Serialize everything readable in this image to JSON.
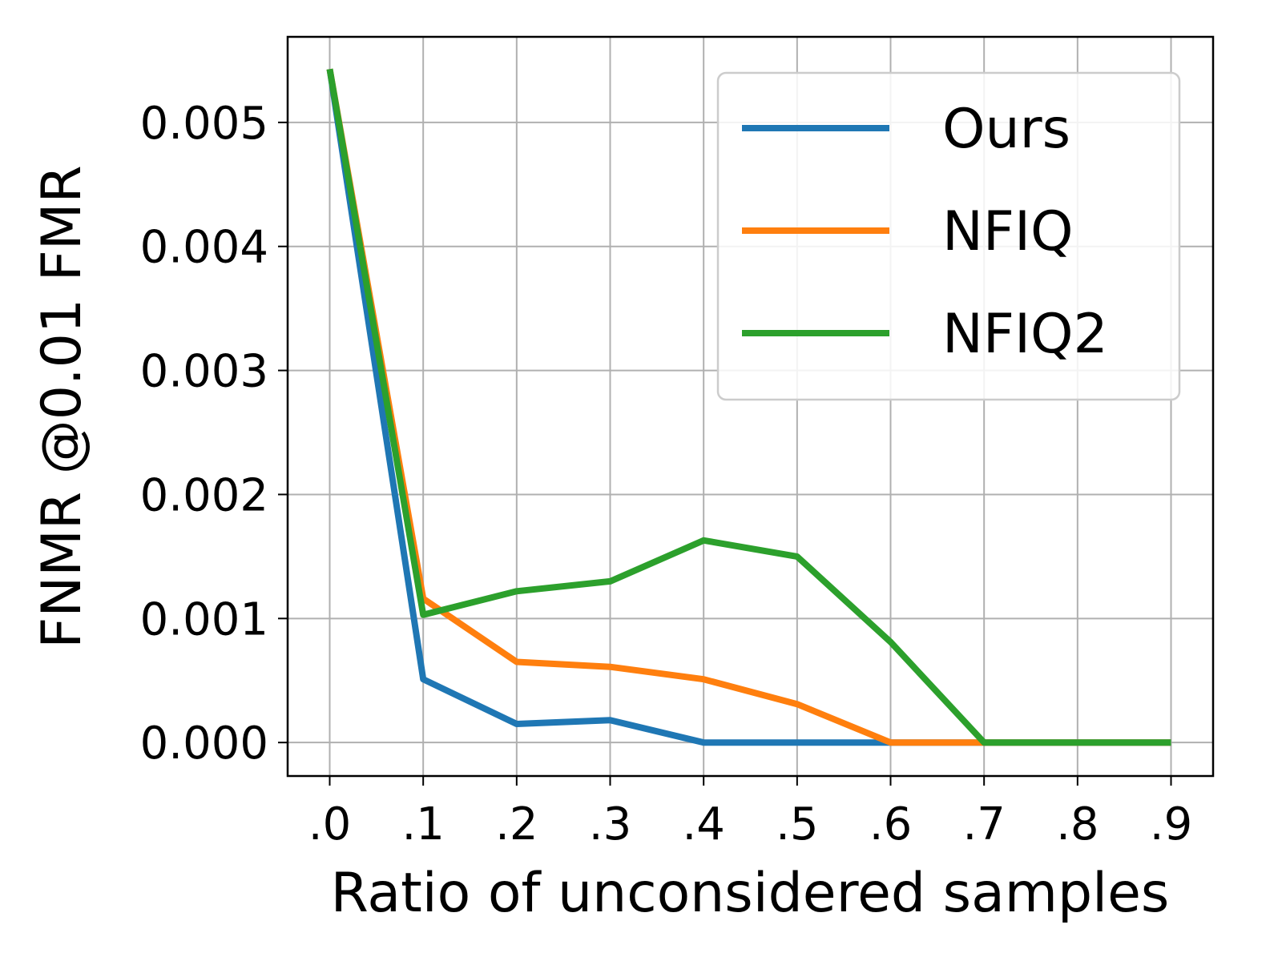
{
  "chart_data": {
    "type": "line",
    "title": "",
    "xlabel": "Ratio of unconsidered samples",
    "ylabel": "FNMR @0.01 FMR",
    "x": [
      0.0,
      0.1,
      0.2,
      0.3,
      0.4,
      0.5,
      0.6,
      0.7,
      0.8,
      0.9
    ],
    "x_tick_labels": [
      ".0",
      ".1",
      ".2",
      ".3",
      ".4",
      ".5",
      ".6",
      ".7",
      ".8",
      ".9"
    ],
    "y_tick_values": [
      0.0,
      0.001,
      0.002,
      0.003,
      0.004,
      0.005
    ],
    "y_tick_labels": [
      "0.000",
      "0.001",
      "0.002",
      "0.003",
      "0.004",
      "0.005"
    ],
    "xlim": [
      -0.045,
      0.945
    ],
    "ylim": [
      -0.00027,
      0.00569
    ],
    "grid": true,
    "legend_position": "top-right",
    "series": [
      {
        "name": "Ours",
        "color": "#1f77b4",
        "values": [
          0.00543,
          0.00051,
          0.00015,
          0.00018,
          0.0,
          0.0,
          0.0,
          0.0,
          0.0,
          0.0
        ]
      },
      {
        "name": "NFIQ",
        "color": "#ff7f0e",
        "values": [
          0.00543,
          0.00116,
          0.00065,
          0.00061,
          0.00051,
          0.00031,
          0.0,
          0.0,
          0.0,
          0.0
        ]
      },
      {
        "name": "NFIQ2",
        "color": "#2ca02c",
        "values": [
          0.00543,
          0.00103,
          0.00122,
          0.0013,
          0.00163,
          0.0015,
          0.00081,
          0.0,
          0.0,
          0.0
        ]
      }
    ]
  }
}
